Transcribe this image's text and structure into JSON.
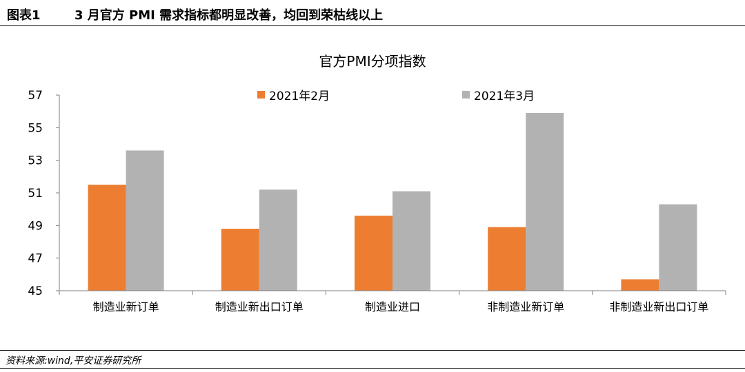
{
  "header": {
    "figure_label": "图表1",
    "title": "3 月官方 PMI 需求指标都明显改善，均回到荣枯线以上"
  },
  "source": "资料来源:wind,平安证券研究所",
  "colors": {
    "feb": "#ED7D31",
    "mar": "#B2B2B2",
    "axis": "#7F7F7F"
  },
  "chart_data": {
    "type": "bar",
    "title": "官方PMI分项指数",
    "categories": [
      "制造业新订单",
      "制造业新出口订单",
      "制造业进口",
      "非制造业新订单",
      "非制造业新出口订单"
    ],
    "series": [
      {
        "name": "2021年2月",
        "values": [
          51.5,
          48.8,
          49.6,
          48.9,
          45.7
        ]
      },
      {
        "name": "2021年3月",
        "values": [
          53.6,
          51.2,
          51.1,
          55.9,
          50.3
        ]
      }
    ],
    "ylim": [
      45,
      57
    ],
    "yticks": [
      45,
      47,
      49,
      51,
      53,
      55,
      57
    ],
    "legend_position": "top",
    "grid": false
  }
}
